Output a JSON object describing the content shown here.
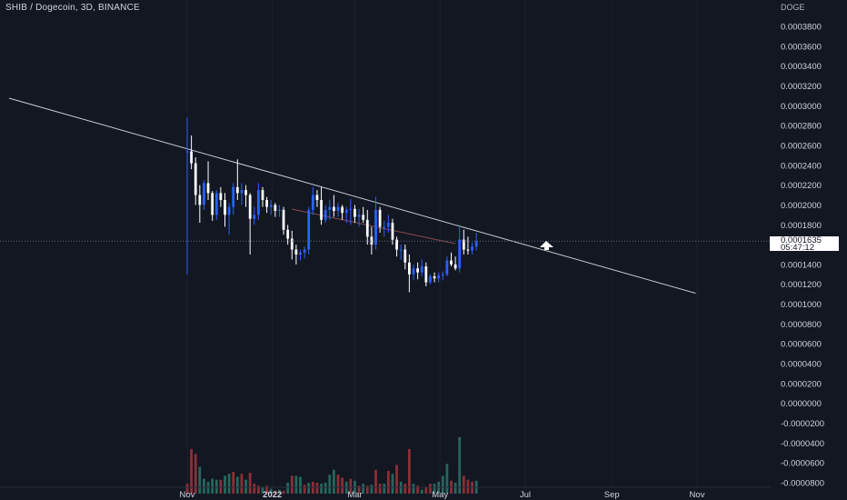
{
  "header": {
    "title": "SHIB / Dogecoin, 3D, BINANCE",
    "currency": "DOGE"
  },
  "price_label": {
    "value": "0.0001635",
    "countdown": "05:47:12"
  },
  "colors": {
    "background": "#131722",
    "up": "#2962ff",
    "up_hollow": "#ffffff",
    "down": "#ffffff",
    "volume_up": "#26675f",
    "volume_down": "#8b3036",
    "trendline": "#c9ccd3",
    "axis_text": "#d1d4dc"
  },
  "chart_data": {
    "type": "candlestick",
    "title": "SHIB / Dogecoin, 3D, BINANCE",
    "y_axis": {
      "ticks": [
        "0.0003800",
        "0.0003600",
        "0.0003400",
        "0.0003200",
        "0.0003000",
        "0.0002800",
        "0.0002600",
        "0.0002400",
        "0.0002200",
        "0.0002000",
        "0.0001800",
        "0.0001400",
        "0.0001200",
        "0.0001000",
        "0.0000800",
        "0.0000600",
        "0.0000400",
        "0.0000200",
        "0.0000000",
        "-0.0000200",
        "-0.0000400",
        "-0.0000600",
        "-0.0000800"
      ],
      "tick_values": [
        0.00038,
        0.00036,
        0.00034,
        0.00032,
        0.0003,
        0.00028,
        0.00026,
        0.00024,
        0.00022,
        0.0002,
        0.00018,
        0.00014,
        0.00012,
        0.0001,
        8e-05,
        6e-05,
        4e-05,
        2e-05,
        0,
        -2e-05,
        -4e-05,
        -6e-05,
        -8e-05
      ],
      "range": [
        -9e-05,
        0.000395
      ],
      "position": "right"
    },
    "x_axis": {
      "labels": [
        "Nov",
        "2022",
        "Mar",
        "May",
        "Jul",
        "Sep",
        "Nov"
      ],
      "label_days": [
        0,
        61,
        120,
        181,
        242,
        304,
        365
      ]
    },
    "last_price": 0.0001635,
    "trendline": {
      "start": {
        "day": -130,
        "value": 0.000307
      },
      "end": {
        "day": 364,
        "value": 0.000111
      }
    },
    "candles": [
      [
        0.000254,
        0.000288,
        0.00013,
        0.000254
      ],
      [
        0.000254,
        0.00027,
        0.000236,
        0.000242
      ],
      [
        0.000242,
        0.000248,
        0.0002,
        0.00021
      ],
      [
        0.00021,
        0.00022,
        0.000182,
        0.0002
      ],
      [
        0.0002,
        0.000225,
        0.000195,
        0.000222
      ],
      [
        0.000222,
        0.000244,
        0.000205,
        0.000212
      ],
      [
        0.000212,
        0.000214,
        0.000184,
        0.00019
      ],
      [
        0.00019,
        0.000215,
        0.000185,
        0.000212
      ],
      [
        0.000212,
        0.000218,
        0.000198,
        0.000205
      ],
      [
        0.000205,
        0.000212,
        0.000178,
        0.00019
      ],
      [
        0.00019,
        0.000202,
        0.00017,
        0.000198
      ],
      [
        0.000198,
        0.000222,
        0.00019,
        0.000218
      ],
      [
        0.000218,
        0.000246,
        0.000205,
        0.000212
      ],
      [
        0.000212,
        0.000222,
        0.0002,
        0.000215
      ],
      [
        0.000215,
        0.00022,
        0.000198,
        0.00021
      ],
      [
        0.00021,
        0.000212,
        0.00015,
        0.000186
      ],
      [
        0.000186,
        0.000198,
        0.00018,
        0.00019
      ],
      [
        0.00019,
        0.000222,
        0.000185,
        0.000215
      ],
      [
        0.000215,
        0.000218,
        0.000198,
        0.000205
      ],
      [
        0.000205,
        0.000208,
        0.000192,
        0.000198
      ],
      [
        0.000198,
        0.000205,
        0.00019,
        0.0002
      ],
      [
        0.0002,
        0.000202,
        0.000188,
        0.000194
      ],
      [
        0.000194,
        0.0002,
        0.000188,
        0.000195
      ],
      [
        0.000195,
        0.000198,
        0.00017,
        0.000175
      ],
      [
        0.000175,
        0.00018,
        0.00016,
        0.000166
      ],
      [
        0.000166,
        0.000174,
        0.000145,
        0.000155
      ],
      [
        0.000155,
        0.00016,
        0.00014,
        0.00015
      ],
      [
        0.00015,
        0.000155,
        0.000144,
        0.000152
      ],
      [
        0.000152,
        0.000158,
        0.000146,
        0.000155
      ],
      [
        0.000155,
        0.000198,
        0.00015,
        0.000195
      ],
      [
        0.000195,
        0.000218,
        0.00019,
        0.00021
      ],
      [
        0.00021,
        0.000215,
        0.000198,
        0.000205
      ],
      [
        0.000205,
        0.000218,
        0.00018,
        0.000185
      ],
      [
        0.000185,
        0.0002,
        0.000182,
        0.000195
      ],
      [
        0.000195,
        0.000205,
        0.000185,
        0.000198
      ],
      [
        0.000198,
        0.00021,
        0.000188,
        0.000194
      ],
      [
        0.000194,
        0.000202,
        0.000188,
        0.000198
      ],
      [
        0.000198,
        0.0002,
        0.000185,
        0.000192
      ],
      [
        0.000192,
        0.000198,
        0.000182,
        0.000195
      ],
      [
        0.000195,
        0.000206,
        0.00018,
        0.000196
      ],
      [
        0.000196,
        0.0002,
        0.000182,
        0.000188
      ],
      [
        0.000188,
        0.000196,
        0.000178,
        0.00019
      ],
      [
        0.00019,
        0.000198,
        0.000182,
        0.000185
      ],
      [
        0.000185,
        0.000195,
        0.00016,
        0.000168
      ],
      [
        0.000168,
        0.000178,
        0.00015,
        0.00016
      ],
      [
        0.00016,
        0.000208,
        0.000155,
        0.000195
      ],
      [
        0.000195,
        0.000198,
        0.000172,
        0.000178
      ],
      [
        0.000178,
        0.000184,
        0.000168,
        0.000178
      ],
      [
        0.000178,
        0.00019,
        0.000172,
        0.000182
      ],
      [
        0.000182,
        0.000186,
        0.00016,
        0.000165
      ],
      [
        0.000165,
        0.000168,
        0.000148,
        0.000155
      ],
      [
        0.000155,
        0.00016,
        0.000145,
        0.000155
      ],
      [
        0.000155,
        0.00016,
        0.000135,
        0.000142
      ],
      [
        0.000142,
        0.00015,
        0.000112,
        0.00013
      ],
      [
        0.00013,
        0.00014,
        0.000124,
        0.000136
      ],
      [
        0.000136,
        0.000142,
        0.000125,
        0.000132
      ],
      [
        0.000132,
        0.000145,
        0.000128,
        0.000138
      ],
      [
        0.000138,
        0.000142,
        0.000118,
        0.000122
      ],
      [
        0.000122,
        0.00013,
        0.00012,
        0.000128
      ],
      [
        0.000128,
        0.000132,
        0.000122,
        0.000126
      ],
      [
        0.000126,
        0.000132,
        0.000122,
        0.000129
      ],
      [
        0.000129,
        0.000133,
        0.000124,
        0.00013
      ],
      [
        0.00013,
        0.000148,
        0.000128,
        0.000144
      ],
      [
        0.000144,
        0.000152,
        0.000138,
        0.00014
      ],
      [
        0.00014,
        0.000148,
        0.000134,
        0.000136
      ],
      [
        0.000136,
        0.00018,
        0.000132,
        0.000165
      ],
      [
        0.000165,
        0.000175,
        0.00015,
        0.000155
      ],
      [
        0.000155,
        0.000168,
        0.00015,
        0.000154
      ],
      [
        0.000154,
        0.000162,
        0.00015,
        0.000158
      ],
      [
        0.000158,
        0.000172,
        0.000154,
        0.0001635
      ]
    ],
    "volume": [
      2e-05,
      -8e-05,
      5e-05,
      0.0,
      8e-05,
      -2e-05,
      -6e-05,
      -7e-05,
      -4e-05,
      -6e-05,
      -4e-05,
      -7e-05,
      -3e-05,
      -1e-05,
      -5e-05,
      -5e-05,
      -3e-05,
      -7e-05,
      -2e-05,
      -7e-05,
      -5e-05,
      -2e-05,
      -3e-05,
      -7e-05,
      -5e-05,
      -3e-05,
      -4e-05,
      -4e-05,
      -8e-05,
      -4e-05,
      -4e-05,
      -2e-05,
      -4e-05,
      -6e-05,
      -4e-05,
      -4e-05,
      -6e-05,
      -6e-05,
      -4e-05,
      -7e-05,
      -4e-05,
      -6e-05,
      -5e-05,
      -3e-05,
      -4e-05,
      -6e-05,
      -1e-05,
      -3e-05,
      -4e-05,
      -6e-05,
      -7e-05,
      -7e-05,
      -3e-05,
      -3e-05,
      -2e-05,
      -7e-05,
      -5e-05,
      -1e-05,
      -4e-05,
      -7e-05,
      -6e-05,
      -3e-05,
      -6e-05,
      -5e-05,
      -2e-05,
      5e-05,
      -6e-05,
      -5e-05,
      -2e-05,
      -7e-05
    ],
    "volume_base": -9.1e-05,
    "volume_heights": [
      1e-05,
      4.5e-05,
      4e-05,
      2.7e-05,
      1.5e-05,
      1.2e-05,
      1.5e-05,
      1.4e-05,
      1.4e-05,
      1.8e-05,
      2e-05,
      2.2e-05,
      1.7e-05,
      2e-05,
      1.4e-05,
      2.1e-05,
      1e-05,
      8e-06,
      6e-06,
      8e-06,
      5e-06,
      3e-06,
      4e-06,
      3e-06,
      1.1e-05,
      1.8e-05,
      1.8e-05,
      1.7e-05,
      9e-06,
      1.1e-05,
      1.2e-05,
      1.1e-05,
      1e-05,
      1.1e-05,
      1.9e-05,
      2.4e-05,
      1.9e-05,
      1.6e-05,
      1.2e-05,
      1.5e-05,
      1.3e-05,
      8e-06,
      1e-05,
      8e-06,
      9e-06,
      2.4e-05,
      1e-05,
      1e-05,
      2.3e-05,
      2e-05,
      2.9e-05,
      1.2e-05,
      1e-05,
      4.5e-05,
      1e-05,
      8e-06,
      4e-06,
      7e-06,
      1e-05,
      1e-05,
      1.2e-05,
      1.8e-05,
      3e-05,
      1.3e-05,
      1.1e-05,
      5.7e-05,
      1.8e-05,
      1.4e-05,
      1.2e-05,
      1.3e-05
    ],
    "volume_up": [
      false,
      false,
      false,
      true,
      true,
      true,
      true,
      true,
      false,
      true,
      true,
      false,
      true,
      false,
      true,
      false,
      false,
      false,
      true,
      false,
      true,
      false,
      true,
      false,
      true,
      false,
      true,
      true,
      false,
      true,
      false,
      false,
      true,
      true,
      true,
      true,
      false,
      false,
      true,
      false,
      true,
      false,
      true,
      false,
      true,
      false,
      false,
      true,
      false,
      true,
      false,
      true,
      false,
      false,
      true,
      false,
      true,
      false,
      false,
      true,
      true,
      true,
      true,
      false,
      true,
      true,
      false,
      false,
      false,
      true
    ]
  }
}
